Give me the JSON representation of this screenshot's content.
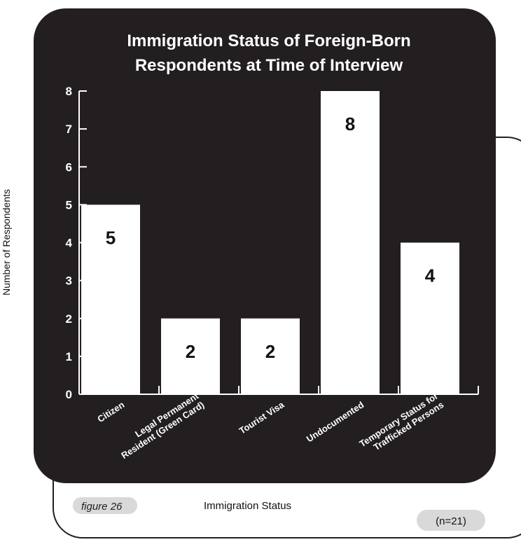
{
  "figure_label": "figure 26",
  "sample_note": "(n=21)",
  "colors": {
    "panel": "#231f20",
    "bar": "#ffffff",
    "pill": "#d9d9d9",
    "outline": "#231f20"
  },
  "chart_data": {
    "type": "bar",
    "title": "Immigration Status of Foreign-Born Respondents at Time of Interview",
    "title_lines": [
      "Immigration Status of Foreign-Born",
      "Respondents at Time of Interview"
    ],
    "xlabel": "Immigration Status",
    "ylabel": "Number of Respondents",
    "categories": [
      "Citizen",
      "Legal Permanent Resident (Green Card)",
      "Tourist Visa",
      "Undocumented",
      "Temporary Status for Trafficked Persons"
    ],
    "category_lines": [
      [
        "Citizen"
      ],
      [
        "Legal Permanent",
        "Resident (Green Card)"
      ],
      [
        "Tourist Visa"
      ],
      [
        "Undocumented"
      ],
      [
        "Temporary Status for",
        "Trafficked Persons"
      ]
    ],
    "values": [
      5,
      2,
      2,
      8,
      4
    ],
    "data_labels": [
      "5",
      "2",
      "2",
      "8",
      "4"
    ],
    "ylim": [
      0,
      8
    ],
    "yticks": [
      "0",
      "1",
      "2",
      "3",
      "4",
      "5",
      "6",
      "7",
      "8"
    ],
    "grid": false,
    "legend": "none"
  }
}
